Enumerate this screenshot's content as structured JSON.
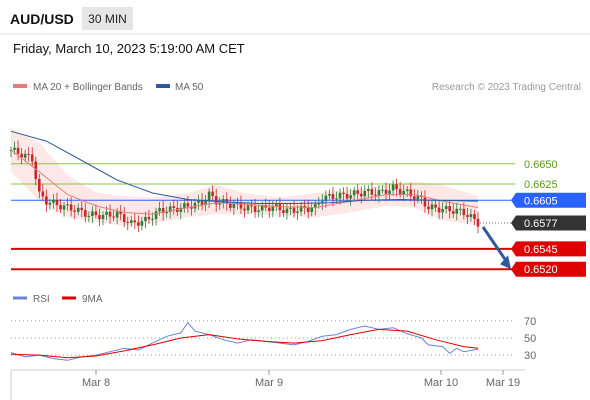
{
  "header": {
    "symbol": "AUD/USD",
    "timeframe": "30 MIN",
    "datetime": "Friday, March 10, 2023 5:19:00 AM CET"
  },
  "legend": {
    "ma20_label": "MA 20 + Bollinger Bands",
    "ma50_label": "MA 50",
    "credit": "Research © 2023 Trading Central",
    "rsi_label": "RSI",
    "rsi_ma_label": "9MA"
  },
  "colors": {
    "ma20": "#e87c7c",
    "ma50": "#2e5a9c",
    "bollinger_fill": "#fde3e3",
    "candle_up": "#2e7d32",
    "candle_down": "#c62828",
    "green_level": "#8bc34a",
    "blue_level": "#2962ff",
    "red_level": "#e00000",
    "current_tag": "#333333",
    "arrow": "#2e5a9c",
    "rsi_line": "#6b84d8",
    "rsi_ma": "#e00000"
  },
  "chart_data": [
    {
      "type": "candlestick",
      "title": "AUD/USD 30 MIN",
      "x_tick_labels": [
        "Mar 8",
        "Mar 9",
        "Mar 10",
        "Mar 19"
      ],
      "ylim": [
        0.6503,
        0.6683
      ],
      "grid": false,
      "legend_position": "top-left",
      "levels": [
        {
          "value": 0.665,
          "label": "0.6650",
          "kind": "resistance"
        },
        {
          "value": 0.6625,
          "label": "0.6625",
          "kind": "resistance"
        },
        {
          "value": 0.6605,
          "label": "0.6605",
          "kind": "pivot"
        },
        {
          "value": 0.6577,
          "label": "0.6577",
          "kind": "last_price"
        },
        {
          "value": 0.6545,
          "label": "0.6545",
          "kind": "support"
        },
        {
          "value": 0.652,
          "label": "0.6520",
          "kind": "support"
        }
      ],
      "price_path": [
        [
          0,
          0.6667
        ],
        [
          4,
          0.666
        ],
        [
          6,
          0.6656
        ],
        [
          8,
          0.6612
        ],
        [
          10,
          0.6604
        ],
        [
          14,
          0.6598
        ],
        [
          18,
          0.6594
        ],
        [
          22,
          0.6587
        ],
        [
          26,
          0.6586
        ],
        [
          30,
          0.6588
        ],
        [
          34,
          0.6576
        ],
        [
          38,
          0.658
        ],
        [
          42,
          0.6592
        ],
        [
          46,
          0.6594
        ],
        [
          50,
          0.6598
        ],
        [
          54,
          0.6602
        ],
        [
          56,
          0.6612
        ],
        [
          58,
          0.6604
        ],
        [
          62,
          0.66
        ],
        [
          66,
          0.6596
        ],
        [
          70,
          0.6594
        ],
        [
          74,
          0.6597
        ],
        [
          78,
          0.6592
        ],
        [
          82,
          0.6594
        ],
        [
          86,
          0.6596
        ],
        [
          88,
          0.6608
        ],
        [
          92,
          0.661
        ],
        [
          96,
          0.6612
        ],
        [
          100,
          0.6615
        ],
        [
          104,
          0.6614
        ],
        [
          108,
          0.662
        ],
        [
          112,
          0.6614
        ],
        [
          116,
          0.6606
        ],
        [
          118,
          0.6596
        ],
        [
          122,
          0.6594
        ],
        [
          126,
          0.6592
        ],
        [
          128,
          0.659
        ],
        [
          130,
          0.6584
        ],
        [
          132,
          0.6577
        ]
      ],
      "series": [
        {
          "name": "MA 20",
          "points": [
            [
              0,
              0.6667
            ],
            [
              8,
              0.664
            ],
            [
              16,
              0.6612
            ],
            [
              24,
              0.6598
            ],
            [
              32,
              0.659
            ],
            [
              40,
              0.6588
            ],
            [
              50,
              0.6596
            ],
            [
              58,
              0.6602
            ],
            [
              66,
              0.66
            ],
            [
              76,
              0.6597
            ],
            [
              86,
              0.6596
            ],
            [
              96,
              0.6604
            ],
            [
              106,
              0.6612
            ],
            [
              114,
              0.6612
            ],
            [
              122,
              0.6604
            ],
            [
              132,
              0.6596
            ]
          ]
        },
        {
          "name": "MA 50",
          "points": [
            [
              0,
              0.669
            ],
            [
              10,
              0.6678
            ],
            [
              20,
              0.6654
            ],
            [
              30,
              0.663
            ],
            [
              40,
              0.6614
            ],
            [
              50,
              0.6606
            ],
            [
              60,
              0.6603
            ],
            [
              70,
              0.6601
            ],
            [
              80,
              0.6601
            ],
            [
              90,
              0.6602
            ],
            [
              100,
              0.6605
            ],
            [
              110,
              0.6606
            ],
            [
              120,
              0.6605
            ],
            [
              132,
              0.6604
            ]
          ]
        }
      ],
      "bollinger_bands": {
        "upper": [
          [
            0,
            0.6694
          ],
          [
            8,
            0.6676
          ],
          [
            16,
            0.6636
          ],
          [
            24,
            0.6615
          ],
          [
            32,
            0.661
          ],
          [
            40,
            0.6608
          ],
          [
            50,
            0.6614
          ],
          [
            58,
            0.6624
          ],
          [
            66,
            0.6614
          ],
          [
            76,
            0.6608
          ],
          [
            86,
            0.6614
          ],
          [
            96,
            0.6618
          ],
          [
            106,
            0.6624
          ],
          [
            114,
            0.6628
          ],
          [
            122,
            0.6624
          ],
          [
            132,
            0.661
          ]
        ],
        "lower": [
          [
            0,
            0.664
          ],
          [
            8,
            0.6604
          ],
          [
            16,
            0.6584
          ],
          [
            24,
            0.6578
          ],
          [
            32,
            0.6574
          ],
          [
            40,
            0.6576
          ],
          [
            50,
            0.6584
          ],
          [
            58,
            0.6588
          ],
          [
            66,
            0.6588
          ],
          [
            76,
            0.6586
          ],
          [
            86,
            0.6584
          ],
          [
            96,
            0.659
          ],
          [
            106,
            0.6598
          ],
          [
            114,
            0.6596
          ],
          [
            122,
            0.658
          ],
          [
            132,
            0.6574
          ]
        ]
      },
      "forecast_arrow": {
        "from": 0.6577,
        "to": 0.652
      }
    },
    {
      "type": "line",
      "title": "RSI",
      "y_tick_labels": [
        "70",
        "50",
        "30"
      ],
      "reference_levels": [
        70,
        50,
        30
      ],
      "ylim": [
        22,
        78
      ],
      "series": [
        {
          "name": "RSI",
          "points": [
            [
              0,
              33
            ],
            [
              4,
              28
            ],
            [
              8,
              30
            ],
            [
              12,
              26
            ],
            [
              16,
              24
            ],
            [
              20,
              28
            ],
            [
              24,
              30
            ],
            [
              28,
              34
            ],
            [
              32,
              38
            ],
            [
              36,
              36
            ],
            [
              40,
              44
            ],
            [
              44,
              52
            ],
            [
              48,
              56
            ],
            [
              50,
              68
            ],
            [
              52,
              58
            ],
            [
              56,
              54
            ],
            [
              60,
              48
            ],
            [
              64,
              44
            ],
            [
              68,
              48
            ],
            [
              72,
              46
            ],
            [
              76,
              44
            ],
            [
              80,
              42
            ],
            [
              84,
              46
            ],
            [
              88,
              52
            ],
            [
              92,
              54
            ],
            [
              96,
              60
            ],
            [
              100,
              64
            ],
            [
              104,
              60
            ],
            [
              108,
              62
            ],
            [
              112,
              55
            ],
            [
              116,
              50
            ],
            [
              118,
              42
            ],
            [
              122,
              40
            ],
            [
              124,
              32
            ],
            [
              126,
              38
            ],
            [
              128,
              34
            ],
            [
              132,
              37
            ]
          ]
        },
        {
          "name": "9MA",
          "points": [
            [
              0,
              31
            ],
            [
              8,
              30
            ],
            [
              16,
              27
            ],
            [
              24,
              29
            ],
            [
              32,
              35
            ],
            [
              40,
              42
            ],
            [
              48,
              50
            ],
            [
              56,
              54
            ],
            [
              64,
              49
            ],
            [
              72,
              46
            ],
            [
              80,
              44
            ],
            [
              88,
              47
            ],
            [
              96,
              54
            ],
            [
              104,
              60
            ],
            [
              112,
              58
            ],
            [
              120,
              48
            ],
            [
              128,
              40
            ],
            [
              132,
              38
            ]
          ]
        }
      ]
    }
  ]
}
